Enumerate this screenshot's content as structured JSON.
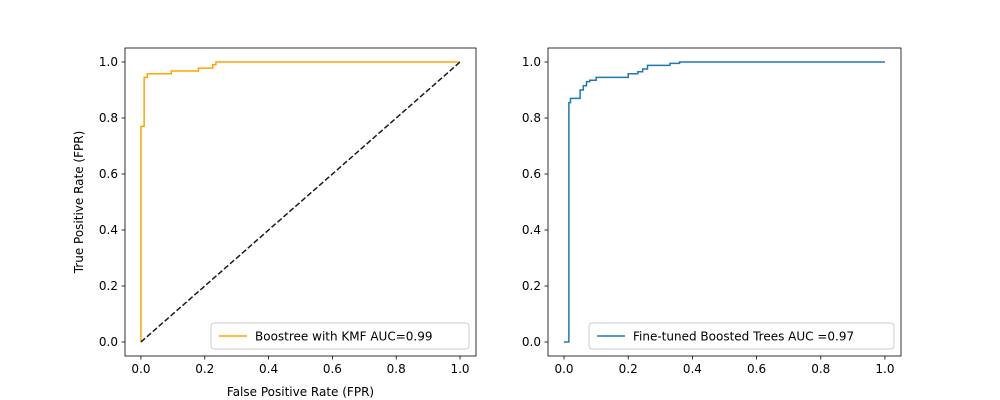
{
  "chart_data": [
    {
      "type": "line",
      "title": "",
      "xlabel": "False Positive Rate (FPR)",
      "ylabel": "True Positive Rate (FPR)",
      "xlim": [
        -0.05,
        1.05
      ],
      "ylim": [
        -0.05,
        1.05
      ],
      "xticks": [
        0.0,
        0.2,
        0.4,
        0.6,
        0.8,
        1.0
      ],
      "yticks": [
        0.0,
        0.2,
        0.4,
        0.6,
        0.8,
        1.0
      ],
      "xtick_labels": [
        "0.0",
        "0.2",
        "0.4",
        "0.6",
        "0.8",
        "1.0"
      ],
      "ytick_labels": [
        "0.0",
        "0.2",
        "0.4",
        "0.6",
        "0.8",
        "1.0"
      ],
      "grid": false,
      "legend_position": "lower-right",
      "series": [
        {
          "name": "Boostree with KMF AUC=0.99",
          "color": "#ffa500",
          "style": "solid",
          "x": [
            0.0,
            0.0,
            0.01,
            0.01,
            0.02,
            0.02,
            0.095,
            0.095,
            0.18,
            0.18,
            0.225,
            0.225,
            0.235,
            0.235,
            1.0
          ],
          "y": [
            0.0,
            0.77,
            0.77,
            0.945,
            0.945,
            0.958,
            0.958,
            0.968,
            0.968,
            0.978,
            0.978,
            0.99,
            0.99,
            1.0,
            1.0
          ]
        },
        {
          "name": "",
          "color": "#1a1a1a",
          "style": "dashed",
          "x": [
            0.0,
            1.0
          ],
          "y": [
            0.0,
            1.0
          ]
        }
      ]
    },
    {
      "type": "line",
      "title": "",
      "xlabel": "",
      "ylabel": "",
      "xlim": [
        -0.05,
        1.05
      ],
      "ylim": [
        -0.05,
        1.05
      ],
      "xticks": [
        0.0,
        0.2,
        0.4,
        0.6,
        0.8,
        1.0
      ],
      "yticks": [
        0.0,
        0.2,
        0.4,
        0.6,
        0.8,
        1.0
      ],
      "xtick_labels": [
        "0.0",
        "0.2",
        "0.4",
        "0.6",
        "0.8",
        "1.0"
      ],
      "ytick_labels": [
        "0.0",
        "0.2",
        "0.4",
        "0.6",
        "0.8",
        "1.0"
      ],
      "grid": false,
      "legend_position": "lower-right",
      "series": [
        {
          "name": "Fine-tuned Boosted Trees AUC =0.97",
          "color": "#1f77b4",
          "style": "solid",
          "x": [
            0.0,
            0.015,
            0.015,
            0.02,
            0.02,
            0.03,
            0.03,
            0.05,
            0.05,
            0.06,
            0.06,
            0.07,
            0.07,
            0.08,
            0.08,
            0.1,
            0.1,
            0.2,
            0.2,
            0.23,
            0.23,
            0.245,
            0.245,
            0.26,
            0.26,
            0.33,
            0.33,
            0.36,
            0.36,
            1.0
          ],
          "y": [
            0.0,
            0.0,
            0.855,
            0.855,
            0.87,
            0.87,
            0.87,
            0.87,
            0.9,
            0.9,
            0.915,
            0.915,
            0.93,
            0.93,
            0.935,
            0.935,
            0.945,
            0.945,
            0.958,
            0.958,
            0.965,
            0.965,
            0.975,
            0.975,
            0.988,
            0.988,
            0.995,
            0.995,
            1.0,
            1.0
          ]
        }
      ]
    }
  ]
}
